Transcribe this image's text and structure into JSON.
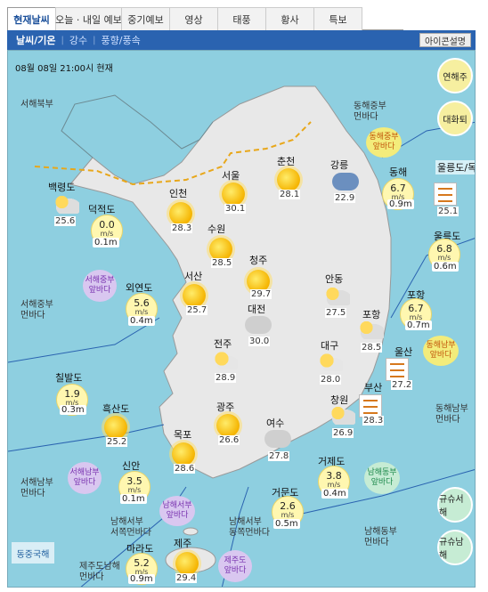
{
  "tabs": [
    "현재날씨",
    "오늘 · 내일 예보",
    "중기예보",
    "영상",
    "태풍",
    "황사",
    "특보"
  ],
  "subtabs": [
    "날씨/기온",
    "강수",
    "풍향/풍속"
  ],
  "icon_desc_button": "아이콘설명",
  "timestamp": "08월 08일 21:00시 현재",
  "side_buttons": [
    "연해주",
    "대화퇴",
    "규슈서해",
    "규슈남해"
  ],
  "corner_label": "동중국해",
  "cities": [
    {
      "name": "백령도",
      "temp": "25.6",
      "icon": "partly-cloudy-icon"
    },
    {
      "name": "인천",
      "temp": "28.3",
      "icon": "sun-icon"
    },
    {
      "name": "서울",
      "temp": "30.1",
      "icon": "sun-icon"
    },
    {
      "name": "춘천",
      "temp": "28.1",
      "icon": "sun-icon"
    },
    {
      "name": "강릉",
      "temp": "22.9",
      "icon": "rain-thunder-icon"
    },
    {
      "name": "수원",
      "temp": "28.5",
      "icon": "sun-icon"
    },
    {
      "name": "청주",
      "temp": "29.7",
      "icon": "sun-icon"
    },
    {
      "name": "서산",
      "temp": "25.7",
      "icon": "sun-icon"
    },
    {
      "name": "대전",
      "temp": "30.0",
      "icon": "cloudy-icon"
    },
    {
      "name": "안동",
      "temp": "27.5",
      "icon": "partly-cloudy-icon"
    },
    {
      "name": "포항",
      "temp": "28.5",
      "icon": "partly-cloudy-icon"
    },
    {
      "name": "전주",
      "temp": "28.9",
      "icon": "partly-sunny-icon"
    },
    {
      "name": "대구",
      "temp": "28.0",
      "icon": "partly-sunny-icon"
    },
    {
      "name": "울산",
      "temp": "27.2",
      "icon": "haze-icon"
    },
    {
      "name": "부산",
      "temp": "28.3",
      "icon": "haze-icon"
    },
    {
      "name": "흑산도",
      "temp": "25.2",
      "icon": "sun-icon"
    },
    {
      "name": "광주",
      "temp": "26.6",
      "icon": "sun-icon"
    },
    {
      "name": "창원",
      "temp": "26.9",
      "icon": "partly-cloudy-icon"
    },
    {
      "name": "목포",
      "temp": "28.6",
      "icon": "sun-icon"
    },
    {
      "name": "여수",
      "temp": "27.8",
      "icon": "cloudy-icon"
    },
    {
      "name": "제주",
      "temp": "29.4",
      "icon": "sun-icon"
    },
    {
      "name": "울릉도/독도",
      "temp": "25.1",
      "icon": "haze-icon"
    }
  ],
  "buoys": [
    {
      "name": "덕적도",
      "speed": "0.0",
      "unit": "m/s",
      "wave": "0.1m"
    },
    {
      "name": "외연도",
      "speed": "5.6",
      "unit": "m/s",
      "wave": "0.4m"
    },
    {
      "name": "칠발도",
      "speed": "1.9",
      "unit": "m/s",
      "wave": "0.3m"
    },
    {
      "name": "신안",
      "speed": "3.5",
      "unit": "m/s",
      "wave": "0.1m"
    },
    {
      "name": "마라도",
      "speed": "5.2",
      "unit": "m/s",
      "wave": "0.9m"
    },
    {
      "name": "거문도",
      "speed": "2.6",
      "unit": "m/s",
      "wave": "0.5m"
    },
    {
      "name": "거제도",
      "speed": "3.8",
      "unit": "m/s",
      "wave": "0.4m"
    },
    {
      "name": "동해",
      "speed": "6.7",
      "unit": "m/s",
      "wave": "0.9m"
    },
    {
      "name": "울릉도",
      "speed": "6.8",
      "unit": "m/s",
      "wave": "0.6m"
    },
    {
      "name": "포항",
      "speed": "6.7",
      "unit": "m/s",
      "wave": "0.7m"
    }
  ],
  "zones": [
    "서해북부",
    "서해중부\n먼바다",
    "서해남부\n먼바다",
    "남해서부\n서쪽먼바다",
    "제주도남해\n먼바다",
    "남해서부\n동쪽먼바다",
    "남해동부\n먼바다",
    "동해남부\n먼바다",
    "동해중부\n먼바다"
  ],
  "bubbles": [
    {
      "label": "동해중부\n앞바다",
      "color": "y"
    },
    {
      "label": "동해남부\n앞바다",
      "color": "y"
    },
    {
      "label": "서해중부\n앞바다",
      "color": "p"
    },
    {
      "label": "서해남부\n앞바다",
      "color": "p"
    },
    {
      "label": "남해서부\n앞바다",
      "color": "p"
    },
    {
      "label": "제주도\n앞바다",
      "color": "p"
    },
    {
      "label": "남해동부\n앞바다",
      "color": "g"
    }
  ]
}
